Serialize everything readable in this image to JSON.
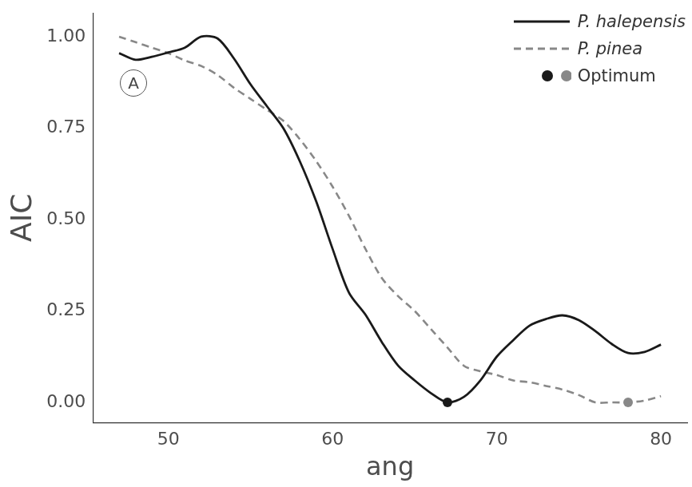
{
  "chart_data": {
    "type": "line",
    "x_label": "ang",
    "y_label": "AIC",
    "annotations": [
      "A"
    ],
    "xlim": [
      45.4,
      81.6
    ],
    "xticks": [
      50,
      60,
      70,
      80
    ],
    "ylim": [
      -0.055,
      1.065
    ],
    "yticks": [
      {
        "value": 0,
        "label": "0.00"
      },
      {
        "value": 0.25,
        "label": "0.25"
      },
      {
        "value": 0.5,
        "label": "0.50"
      },
      {
        "value": 0.75,
        "label": "0.75"
      },
      {
        "value": 1,
        "label": "1.00"
      }
    ],
    "grid": false,
    "legend": "top-right",
    "series": [
      {
        "name": "P. halepensis",
        "color": "#1a1a1a",
        "line_style": "solid",
        "x": [
          47,
          48,
          49,
          50,
          51,
          52,
          53,
          54,
          55,
          56,
          57,
          58,
          59,
          60,
          61,
          62,
          63,
          64,
          65,
          66,
          67,
          68,
          69,
          70,
          71,
          72,
          73,
          74,
          75,
          76,
          77,
          78,
          79,
          80
        ],
        "values": [
          0.955,
          0.937,
          0.945,
          0.957,
          0.97,
          1.0,
          0.995,
          0.94,
          0.87,
          0.81,
          0.75,
          0.66,
          0.55,
          0.42,
          0.3,
          0.24,
          0.165,
          0.1,
          0.06,
          0.025,
          0.0,
          0.015,
          0.06,
          0.125,
          0.17,
          0.21,
          0.228,
          0.238,
          0.225,
          0.195,
          0.16,
          0.135,
          0.138,
          0.158
        ]
      },
      {
        "name": "P. pinea",
        "color": "#888888",
        "line_style": "dashed",
        "x": [
          47,
          48,
          49,
          50,
          51,
          52,
          53,
          54,
          55,
          56,
          57,
          58,
          59,
          60,
          61,
          62,
          63,
          64,
          65,
          66,
          67,
          68,
          69,
          70,
          71,
          72,
          73,
          74,
          75,
          76,
          77,
          78,
          79,
          80
        ],
        "values": [
          1.0,
          0.985,
          0.97,
          0.955,
          0.935,
          0.92,
          0.895,
          0.86,
          0.83,
          0.8,
          0.77,
          0.72,
          0.66,
          0.59,
          0.51,
          0.42,
          0.34,
          0.29,
          0.25,
          0.2,
          0.15,
          0.1,
          0.085,
          0.075,
          0.06,
          0.055,
          0.045,
          0.035,
          0.02,
          0.0,
          0.0,
          0.0,
          0.005,
          0.017
        ]
      },
      {
        "name": "Optimum",
        "type": "scatter",
        "marker": "circle",
        "colors": [
          "#1a1a1a",
          "#888888"
        ],
        "x": [
          67,
          78
        ],
        "values": [
          0,
          0
        ]
      }
    ]
  }
}
